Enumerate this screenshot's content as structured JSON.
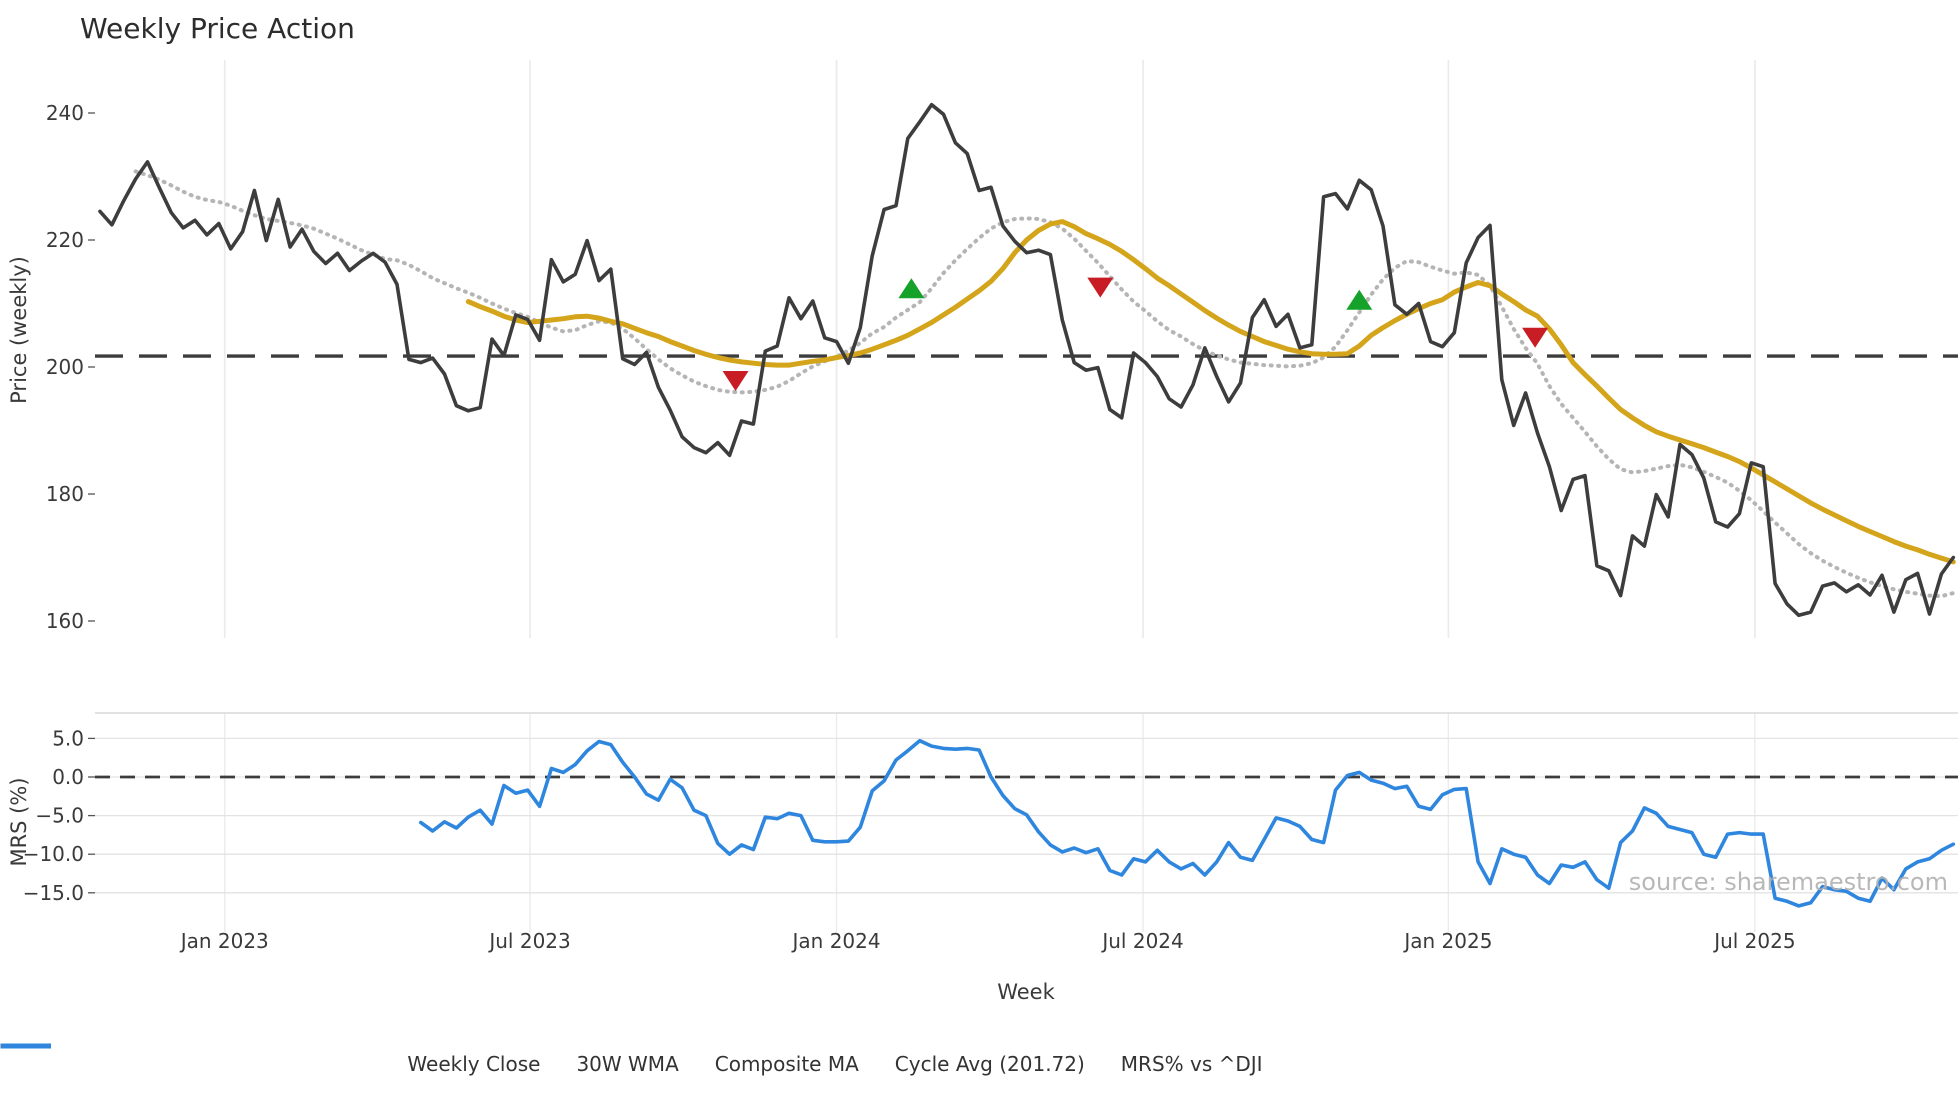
{
  "title": "Weekly Price Action",
  "xlabel": "Week",
  "watermark": "source: sharemaestro.com",
  "colors": {
    "close": "#3d3d3d",
    "wma": "#d4a41b",
    "composite": "#b5b5b5",
    "cycle": "#3c3c3c",
    "mrs": "#2e86de",
    "buy": "#15a22b",
    "sell": "#c81d24",
    "grid": "#ebebeb",
    "grid_h": "#e3e3e3",
    "text": "#3a3a3a"
  },
  "legend": [
    {
      "label": "Weekly Close",
      "style": "solid",
      "color": "#3d3d3d"
    },
    {
      "label": "30W WMA",
      "style": "solid",
      "color": "#d4a41b"
    },
    {
      "label": "Composite MA",
      "style": "dotted",
      "color": "#b5b5b5"
    },
    {
      "label": "Cycle Avg (201.72)",
      "style": "dashed",
      "color": "#3c3c3c"
    },
    {
      "label": "MRS% vs ^DJI",
      "style": "solid",
      "color": "#2e86de"
    }
  ],
  "xticks": [
    {
      "week": 10.5,
      "label": "Jan 2023"
    },
    {
      "week": 36.2,
      "label": "Jul 2023"
    },
    {
      "week": 62.0,
      "label": "Jan 2024"
    },
    {
      "week": 87.8,
      "label": "Jul 2024"
    },
    {
      "week": 113.5,
      "label": "Jan 2025"
    },
    {
      "week": 139.3,
      "label": "Jul 2025"
    }
  ],
  "chart_data": [
    {
      "type": "line",
      "title": "Weekly Price Action",
      "ylabel": "Price (weekly)",
      "ylim": [
        157,
        246
      ],
      "grid": "vertical",
      "yticks": [
        {
          "value": 240,
          "label": "240"
        },
        {
          "value": 220,
          "label": "220"
        },
        {
          "value": 200,
          "label": "200"
        },
        {
          "value": 180,
          "label": "180"
        },
        {
          "value": 160,
          "label": "160"
        }
      ],
      "cycle_avg": 201.72,
      "series": [
        {
          "id": "close",
          "name": "Weekly Close",
          "style": "solid",
          "color": "#3d3d3d",
          "start_week": 0,
          "values": [
            224.5,
            222.4,
            226.2,
            229.6,
            232.3,
            228.2,
            224.3,
            221.9,
            223.1,
            220.8,
            222.6,
            218.6,
            221.3,
            227.8,
            219.9,
            226.4,
            218.9,
            221.7,
            218.2,
            216.3,
            217.9,
            215.2,
            216.7,
            217.9,
            216.5,
            213.0,
            201.2,
            200.7,
            201.4,
            198.9,
            193.9,
            193.1,
            193.6,
            204.4,
            201.8,
            208.2,
            207.5,
            204.2,
            216.9,
            213.4,
            214.6,
            219.9,
            213.6,
            215.4,
            201.3,
            200.4,
            202.3,
            196.8,
            193.2,
            189.0,
            187.3,
            186.5,
            188.1,
            186.1,
            191.5,
            191.0,
            202.5,
            203.3,
            210.9,
            207.6,
            210.4,
            204.6,
            204.0,
            200.6,
            206.2,
            217.5,
            224.8,
            225.4,
            236.0,
            238.6,
            241.3,
            239.8,
            235.3,
            233.6,
            227.8,
            228.3,
            222.2,
            219.8,
            218.0,
            218.4,
            217.7,
            207.4,
            200.7,
            199.5,
            199.9,
            193.3,
            192.0,
            202.2,
            200.7,
            198.5,
            195.0,
            193.7,
            197.2,
            203.0,
            198.5,
            194.5,
            197.5,
            207.8,
            210.6,
            206.4,
            208.3,
            203.0,
            203.5,
            226.8,
            227.3,
            224.9,
            229.4,
            227.9,
            222.2,
            209.8,
            208.3,
            210.0,
            204.0,
            203.2,
            205.4,
            216.4,
            220.4,
            222.3,
            198.0,
            190.8,
            195.9,
            189.6,
            184.3,
            177.4,
            182.3,
            182.9,
            168.7,
            167.9,
            164.0,
            173.4,
            171.8,
            179.9,
            176.4,
            187.8,
            186.2,
            182.5,
            175.6,
            174.8,
            176.9,
            184.9,
            184.3,
            165.9,
            162.7,
            160.9,
            161.4,
            165.5,
            166.0,
            164.6,
            165.7,
            164.1,
            167.2,
            161.4,
            166.5,
            167.5,
            161.1,
            167.4,
            170.0
          ]
        },
        {
          "id": "wma",
          "name": "30W WMA",
          "style": "solid",
          "color": "#d4a41b",
          "start_week": 31,
          "values": [
            210.3,
            209.5,
            208.8,
            208.0,
            207.4,
            207.0,
            207.2,
            207.4,
            207.6,
            207.9,
            208.0,
            207.7,
            207.2,
            206.8,
            206.1,
            205.4,
            204.8,
            204.0,
            203.3,
            202.6,
            202.0,
            201.5,
            201.1,
            200.8,
            200.6,
            200.4,
            200.3,
            200.3,
            200.6,
            200.9,
            201.1,
            201.5,
            201.8,
            202.2,
            202.8,
            203.5,
            204.2,
            205.0,
            206.0,
            207.0,
            208.2,
            209.4,
            210.7,
            212.0,
            213.5,
            215.5,
            218.0,
            220.0,
            221.5,
            222.5,
            222.9,
            222.1,
            221.0,
            220.2,
            219.3,
            218.2,
            216.9,
            215.5,
            214.0,
            212.8,
            211.5,
            210.2,
            208.9,
            207.7,
            206.6,
            205.6,
            204.8,
            204.0,
            203.4,
            202.8,
            202.4,
            202.1,
            202.0,
            202.0,
            202.1,
            203.3,
            205.0,
            206.2,
            207.3,
            208.3,
            209.2,
            210.0,
            210.6,
            211.8,
            212.6,
            213.3,
            212.8,
            211.5,
            210.3,
            209.0,
            208.0,
            206.0,
            203.5,
            200.7,
            198.8,
            197.0,
            195.1,
            193.3,
            192.0,
            190.8,
            189.8,
            189.1,
            188.5,
            187.9,
            187.3,
            186.6,
            185.9,
            185.1,
            184.1,
            183.0,
            181.9,
            180.8,
            179.7,
            178.6,
            177.6,
            176.7,
            175.8,
            174.9,
            174.1,
            173.3,
            172.5,
            171.8,
            171.2,
            170.5,
            169.9,
            169.3
          ]
        },
        {
          "id": "composite",
          "name": "Composite MA",
          "style": "dotted",
          "color": "#b5b5b5",
          "start_week": 3,
          "values": [
            230.8,
            230.2,
            229.5,
            228.6,
            227.6,
            226.8,
            226.3,
            226.0,
            225.4,
            224.6,
            223.9,
            223.3,
            223.0,
            222.7,
            222.3,
            221.8,
            221.0,
            220.2,
            219.3,
            218.4,
            217.7,
            217.0,
            216.8,
            216.1,
            215.1,
            214.0,
            213.2,
            212.4,
            211.7,
            210.9,
            210.0,
            209.2,
            208.5,
            207.9,
            207.0,
            206.2,
            205.6,
            205.8,
            206.6,
            207.2,
            207.0,
            206.0,
            204.5,
            202.8,
            201.2,
            199.8,
            198.7,
            197.7,
            197.0,
            196.4,
            196.1,
            196.0,
            196.1,
            196.4,
            196.9,
            197.8,
            199.0,
            200.1,
            200.9,
            201.6,
            202.6,
            203.8,
            205.3,
            206.3,
            207.8,
            209.0,
            210.2,
            212.4,
            214.8,
            216.8,
            218.6,
            220.3,
            221.8,
            222.8,
            223.3,
            223.4,
            223.3,
            222.8,
            221.8,
            220.2,
            218.3,
            216.4,
            214.3,
            212.2,
            210.3,
            208.8,
            207.2,
            205.8,
            204.8,
            203.6,
            202.6,
            201.8,
            201.2,
            200.7,
            200.5,
            200.3,
            200.2,
            200.1,
            200.2,
            200.6,
            201.5,
            203.2,
            205.8,
            208.6,
            211.4,
            213.8,
            215.6,
            216.7,
            216.5,
            215.8,
            215.2,
            214.7,
            214.9,
            214.5,
            212.8,
            209.5,
            206.0,
            203.0,
            200.5,
            197.0,
            194.2,
            192.0,
            189.8,
            187.5,
            185.5,
            183.9,
            183.4,
            183.6,
            184.0,
            184.4,
            184.6,
            184.2,
            183.5,
            182.7,
            181.8,
            180.5,
            179.0,
            177.3,
            175.5,
            173.8,
            172.1,
            170.7,
            169.5,
            168.5,
            167.6,
            166.8,
            166.1,
            165.5,
            165.0,
            164.6,
            164.3,
            164.0,
            163.9,
            164.4
          ]
        }
      ],
      "markers": [
        {
          "signal": "sell",
          "shape": "triangle-down",
          "week": 53.5,
          "price": 197.8
        },
        {
          "signal": "buy",
          "shape": "triangle-up",
          "week": 68.3,
          "price": 212.4
        },
        {
          "signal": "sell",
          "shape": "triangle-down",
          "week": 84.2,
          "price": 212.5
        },
        {
          "signal": "buy",
          "shape": "triangle-up",
          "week": 106.0,
          "price": 210.6
        },
        {
          "signal": "sell",
          "shape": "triangle-down",
          "week": 120.8,
          "price": 204.6
        }
      ]
    },
    {
      "type": "line",
      "ylabel": "MRS (%)",
      "ylim": [
        -20,
        8.3
      ],
      "grid": "both",
      "zero_line": 0.0,
      "yticks": [
        {
          "value": 5,
          "label": "5.0"
        },
        {
          "value": 0,
          "label": "0.0"
        },
        {
          "value": -5,
          "label": "−5.0"
        },
        {
          "value": -10,
          "label": "−10.0"
        },
        {
          "value": -15,
          "label": "−15.0"
        }
      ],
      "series": [
        {
          "id": "mrs",
          "name": "MRS% vs ^DJI",
          "style": "solid",
          "color": "#2e86de",
          "start_week": 27,
          "values": [
            -5.9,
            -7.0,
            -5.8,
            -6.6,
            -5.2,
            -4.3,
            -6.1,
            -1.1,
            -2.1,
            -1.7,
            -3.8,
            1.1,
            0.6,
            1.6,
            3.4,
            4.6,
            4.2,
            1.9,
            0.0,
            -2.2,
            -3.0,
            -0.3,
            -1.4,
            -4.3,
            -5.0,
            -8.6,
            -10.0,
            -8.8,
            -9.4,
            -5.2,
            -5.4,
            -4.7,
            -5.0,
            -8.2,
            -8.4,
            -8.4,
            -8.3,
            -6.5,
            -1.8,
            -0.5,
            2.2,
            3.4,
            4.7,
            4.0,
            3.7,
            3.6,
            3.7,
            3.5,
            0.0,
            -2.4,
            -4.1,
            -4.9,
            -7.1,
            -8.8,
            -9.7,
            -9.2,
            -9.8,
            -9.3,
            -12.1,
            -12.7,
            -10.6,
            -11.0,
            -9.5,
            -11.0,
            -11.9,
            -11.2,
            -12.7,
            -11.0,
            -8.5,
            -10.4,
            -10.8,
            -8.1,
            -5.3,
            -5.7,
            -6.4,
            -8.1,
            -8.5,
            -1.7,
            0.2,
            0.6,
            -0.4,
            -0.8,
            -1.5,
            -1.2,
            -3.8,
            -4.2,
            -2.3,
            -1.6,
            -1.5,
            -11.0,
            -13.8,
            -9.3,
            -10.0,
            -10.4,
            -12.7,
            -13.8,
            -11.4,
            -11.7,
            -11.0,
            -13.3,
            -14.4,
            -8.5,
            -7.0,
            -4.0,
            -4.7,
            -6.4,
            -6.8,
            -7.2,
            -10.0,
            -10.4,
            -7.4,
            -7.2,
            -7.4,
            -7.4,
            -15.7,
            -16.1,
            -16.7,
            -16.3,
            -14.2,
            -14.6,
            -14.8,
            -15.7,
            -16.1,
            -13.1,
            -14.6,
            -11.9,
            -11.0,
            -10.6,
            -9.5,
            -8.7
          ]
        }
      ]
    }
  ]
}
